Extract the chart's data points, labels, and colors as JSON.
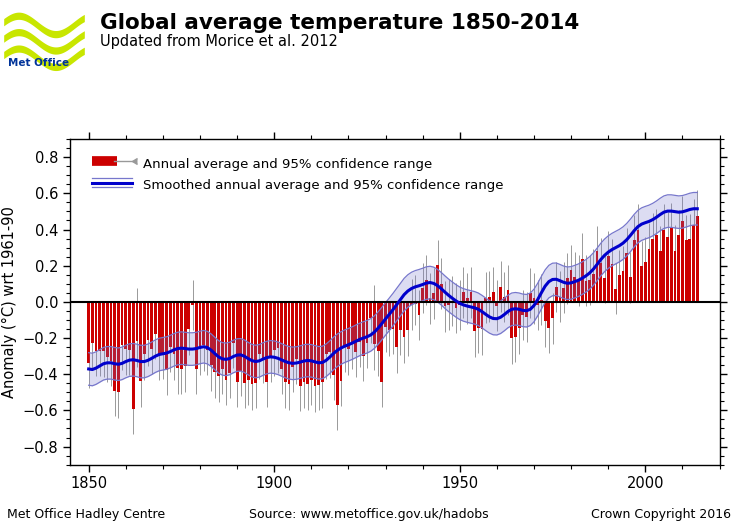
{
  "title": "Global average temperature 1850-2014",
  "subtitle": "Updated from Morice et al. 2012",
  "ylabel": "Anomaly (°C) wrt 1961-90",
  "xlabel_left": "Met Office Hadley Centre",
  "xlabel_center": "Source: www.metoffice.gov.uk/hadobs",
  "xlabel_right": "Crown Copyright 2016",
  "ylim": [
    -0.9,
    0.9
  ],
  "xlim": [
    1845,
    2020
  ],
  "yticks": [
    -0.8,
    -0.6,
    -0.4,
    -0.2,
    0.0,
    0.2,
    0.4,
    0.6,
    0.8
  ],
  "xticks": [
    1850,
    1900,
    1950,
    2000
  ],
  "bar_color": "#cc0000",
  "smooth_color": "#0000cc",
  "smooth_ci_color": "#7777cc",
  "error_bar_color": "#999999",
  "zero_line_color": "#000000",
  "background_color": "#ffffff",
  "logo_color": "#c8e600",
  "logo_text_color": "#003399",
  "years": [
    1850,
    1851,
    1852,
    1853,
    1854,
    1855,
    1856,
    1857,
    1858,
    1859,
    1860,
    1861,
    1862,
    1863,
    1864,
    1865,
    1866,
    1867,
    1868,
    1869,
    1870,
    1871,
    1872,
    1873,
    1874,
    1875,
    1876,
    1877,
    1878,
    1879,
    1880,
    1881,
    1882,
    1883,
    1884,
    1885,
    1886,
    1887,
    1888,
    1889,
    1890,
    1891,
    1892,
    1893,
    1894,
    1895,
    1896,
    1897,
    1898,
    1899,
    1900,
    1901,
    1902,
    1903,
    1904,
    1905,
    1906,
    1907,
    1908,
    1909,
    1910,
    1911,
    1912,
    1913,
    1914,
    1915,
    1916,
    1917,
    1918,
    1919,
    1920,
    1921,
    1922,
    1923,
    1924,
    1925,
    1926,
    1927,
    1928,
    1929,
    1930,
    1931,
    1932,
    1933,
    1934,
    1935,
    1936,
    1937,
    1938,
    1939,
    1940,
    1941,
    1942,
    1943,
    1944,
    1945,
    1946,
    1947,
    1948,
    1949,
    1950,
    1951,
    1952,
    1953,
    1954,
    1955,
    1956,
    1957,
    1958,
    1959,
    1960,
    1961,
    1962,
    1963,
    1964,
    1965,
    1966,
    1967,
    1968,
    1969,
    1970,
    1971,
    1972,
    1973,
    1974,
    1975,
    1976,
    1977,
    1978,
    1979,
    1980,
    1981,
    1982,
    1983,
    1984,
    1985,
    1986,
    1987,
    1988,
    1989,
    1990,
    1991,
    1992,
    1993,
    1994,
    1995,
    1996,
    1997,
    1998,
    1999,
    2000,
    2001,
    2002,
    2003,
    2004,
    2005,
    2006,
    2007,
    2008,
    2009,
    2010,
    2011,
    2012,
    2013,
    2014
  ],
  "anomaly": [
    -0.336,
    -0.229,
    -0.27,
    -0.272,
    -0.274,
    -0.305,
    -0.326,
    -0.491,
    -0.5,
    -0.238,
    -0.262,
    -0.267,
    -0.591,
    -0.219,
    -0.44,
    -0.29,
    -0.212,
    -0.259,
    -0.177,
    -0.29,
    -0.288,
    -0.376,
    -0.248,
    -0.291,
    -0.367,
    -0.371,
    -0.357,
    -0.152,
    -0.017,
    -0.37,
    -0.263,
    -0.241,
    -0.264,
    -0.351,
    -0.39,
    -0.411,
    -0.371,
    -0.43,
    -0.392,
    -0.228,
    -0.442,
    -0.381,
    -0.447,
    -0.432,
    -0.456,
    -0.448,
    -0.287,
    -0.31,
    -0.444,
    -0.301,
    -0.268,
    -0.254,
    -0.37,
    -0.445,
    -0.456,
    -0.359,
    -0.316,
    -0.465,
    -0.445,
    -0.456,
    -0.433,
    -0.467,
    -0.457,
    -0.445,
    -0.289,
    -0.279,
    -0.402,
    -0.568,
    -0.437,
    -0.248,
    -0.262,
    -0.229,
    -0.277,
    -0.22,
    -0.297,
    -0.225,
    -0.087,
    -0.234,
    -0.272,
    -0.444,
    -0.137,
    -0.158,
    -0.148,
    -0.251,
    -0.153,
    -0.197,
    -0.157,
    -0.016,
    -0.013,
    -0.072,
    0.077,
    0.12,
    0.02,
    0.048,
    0.204,
    0.101,
    -0.024,
    -0.015,
    0.004,
    -0.033,
    -0.017,
    0.053,
    0.019,
    0.053,
    -0.163,
    -0.143,
    -0.152,
    0.024,
    0.028,
    0.052,
    -0.021,
    0.084,
    0.027,
    0.066,
    -0.201,
    -0.193,
    -0.146,
    -0.073,
    -0.084,
    0.05,
    0.02,
    -0.017,
    0.013,
    -0.107,
    -0.145,
    -0.091,
    0.082,
    0.029,
    0.079,
    0.131,
    0.175,
    0.137,
    0.117,
    0.239,
    0.118,
    0.121,
    0.152,
    0.28,
    0.213,
    0.133,
    0.253,
    0.21,
    0.073,
    0.148,
    0.17,
    0.27,
    0.136,
    0.34,
    0.4,
    0.197,
    0.219,
    0.294,
    0.349,
    0.371,
    0.279,
    0.399,
    0.358,
    0.406,
    0.283,
    0.37,
    0.446,
    0.341,
    0.347,
    0.427,
    0.477
  ],
  "ci_lower": [
    -0.476,
    -0.369,
    -0.41,
    -0.412,
    -0.414,
    -0.445,
    -0.466,
    -0.631,
    -0.64,
    -0.378,
    -0.402,
    -0.407,
    -0.731,
    -0.359,
    -0.58,
    -0.43,
    -0.352,
    -0.399,
    -0.317,
    -0.43,
    -0.428,
    -0.516,
    -0.388,
    -0.431,
    -0.507,
    -0.511,
    -0.497,
    -0.292,
    -0.157,
    -0.51,
    -0.403,
    -0.381,
    -0.404,
    -0.491,
    -0.53,
    -0.551,
    -0.511,
    -0.57,
    -0.532,
    -0.368,
    -0.582,
    -0.521,
    -0.587,
    -0.572,
    -0.596,
    -0.588,
    -0.427,
    -0.45,
    -0.584,
    -0.441,
    -0.408,
    -0.394,
    -0.51,
    -0.585,
    -0.596,
    -0.499,
    -0.456,
    -0.605,
    -0.585,
    -0.596,
    -0.573,
    -0.607,
    -0.597,
    -0.585,
    -0.429,
    -0.419,
    -0.542,
    -0.708,
    -0.577,
    -0.388,
    -0.402,
    -0.369,
    -0.417,
    -0.36,
    -0.437,
    -0.365,
    -0.227,
    -0.374,
    -0.412,
    -0.584,
    -0.277,
    -0.298,
    -0.288,
    -0.391,
    -0.293,
    -0.337,
    -0.297,
    -0.156,
    -0.127,
    -0.212,
    -0.063,
    -0.02,
    -0.12,
    -0.092,
    0.064,
    -0.039,
    -0.164,
    -0.155,
    -0.136,
    -0.173,
    -0.157,
    -0.087,
    -0.121,
    -0.087,
    -0.303,
    -0.283,
    -0.292,
    -0.116,
    -0.112,
    -0.088,
    -0.161,
    -0.056,
    -0.113,
    -0.074,
    -0.341,
    -0.333,
    -0.286,
    -0.213,
    -0.224,
    -0.09,
    -0.121,
    -0.157,
    -0.127,
    -0.247,
    -0.285,
    -0.231,
    -0.058,
    -0.111,
    -0.061,
    -0.009,
    0.035,
    -0.003,
    -0.023,
    0.099,
    -0.022,
    -0.019,
    0.012,
    0.14,
    0.073,
    -0.007,
    0.113,
    0.07,
    -0.067,
    0.008,
    0.03,
    0.13,
    -0.004,
    0.2,
    0.26,
    0.057,
    0.079,
    0.154,
    0.209,
    0.231,
    0.139,
    0.259,
    0.218,
    0.266,
    0.143,
    0.23,
    0.306,
    0.201,
    0.207,
    0.287,
    0.337
  ],
  "ci_upper": [
    -0.196,
    -0.089,
    -0.13,
    -0.132,
    -0.134,
    -0.165,
    -0.186,
    -0.351,
    -0.36,
    -0.098,
    -0.122,
    -0.127,
    -0.451,
    0.079,
    -0.3,
    -0.15,
    -0.072,
    -0.119,
    -0.037,
    -0.15,
    -0.148,
    -0.236,
    -0.108,
    -0.151,
    -0.227,
    -0.231,
    -0.217,
    -0.012,
    0.123,
    -0.23,
    -0.123,
    -0.101,
    -0.124,
    -0.211,
    -0.25,
    -0.271,
    -0.231,
    -0.29,
    -0.252,
    -0.088,
    -0.302,
    -0.241,
    -0.307,
    -0.292,
    -0.316,
    -0.308,
    -0.147,
    -0.17,
    -0.304,
    -0.161,
    -0.128,
    -0.114,
    -0.23,
    -0.305,
    -0.316,
    -0.219,
    -0.176,
    -0.325,
    -0.305,
    -0.316,
    -0.293,
    -0.327,
    -0.317,
    -0.305,
    -0.149,
    -0.139,
    -0.262,
    -0.428,
    -0.297,
    -0.108,
    -0.122,
    -0.089,
    -0.137,
    -0.08,
    -0.157,
    -0.085,
    -0.053,
    0.094,
    -0.132,
    -0.304,
    0.003,
    -0.018,
    -0.008,
    -0.111,
    -0.013,
    -0.057,
    -0.017,
    0.124,
    0.147,
    0.068,
    0.217,
    0.26,
    0.16,
    0.188,
    0.344,
    0.241,
    0.116,
    0.125,
    0.144,
    0.107,
    0.123,
    0.193,
    0.159,
    0.193,
    -0.023,
    -0.003,
    -0.012,
    0.164,
    0.168,
    0.192,
    0.119,
    0.224,
    0.163,
    0.206,
    -0.061,
    -0.053,
    -0.006,
    0.067,
    0.056,
    0.19,
    0.161,
    0.123,
    0.153,
    -0.033,
    -0.005,
    0.049,
    0.222,
    0.169,
    0.219,
    0.271,
    0.315,
    0.277,
    0.257,
    0.379,
    0.258,
    0.261,
    0.292,
    0.42,
    0.353,
    0.273,
    0.393,
    0.35,
    0.213,
    0.288,
    0.31,
    0.41,
    0.276,
    0.48,
    0.54,
    0.337,
    0.359,
    0.434,
    0.489,
    0.511,
    0.419,
    0.539,
    0.498,
    0.546,
    0.423,
    0.51,
    0.586,
    0.481,
    0.487,
    0.567,
    0.617
  ],
  "smooth": [
    -0.371,
    -0.374,
    -0.366,
    -0.354,
    -0.342,
    -0.337,
    -0.337,
    -0.342,
    -0.345,
    -0.34,
    -0.33,
    -0.322,
    -0.32,
    -0.324,
    -0.33,
    -0.33,
    -0.323,
    -0.312,
    -0.3,
    -0.291,
    -0.287,
    -0.283,
    -0.275,
    -0.265,
    -0.258,
    -0.256,
    -0.258,
    -0.261,
    -0.261,
    -0.258,
    -0.252,
    -0.248,
    -0.253,
    -0.267,
    -0.286,
    -0.304,
    -0.315,
    -0.318,
    -0.313,
    -0.302,
    -0.294,
    -0.293,
    -0.301,
    -0.314,
    -0.325,
    -0.33,
    -0.326,
    -0.316,
    -0.308,
    -0.304,
    -0.306,
    -0.312,
    -0.321,
    -0.33,
    -0.337,
    -0.34,
    -0.338,
    -0.333,
    -0.327,
    -0.324,
    -0.326,
    -0.332,
    -0.337,
    -0.335,
    -0.323,
    -0.305,
    -0.285,
    -0.268,
    -0.255,
    -0.245,
    -0.237,
    -0.228,
    -0.218,
    -0.208,
    -0.2,
    -0.193,
    -0.183,
    -0.167,
    -0.145,
    -0.12,
    -0.094,
    -0.069,
    -0.043,
    -0.015,
    0.014,
    0.04,
    0.06,
    0.074,
    0.083,
    0.089,
    0.096,
    0.104,
    0.107,
    0.102,
    0.09,
    0.073,
    0.054,
    0.036,
    0.02,
    0.005,
    -0.008,
    -0.017,
    -0.023,
    -0.028,
    -0.033,
    -0.041,
    -0.054,
    -0.069,
    -0.083,
    -0.092,
    -0.093,
    -0.085,
    -0.07,
    -0.053,
    -0.041,
    -0.038,
    -0.041,
    -0.047,
    -0.049,
    -0.041,
    -0.02,
    0.013,
    0.051,
    0.087,
    0.112,
    0.124,
    0.125,
    0.117,
    0.108,
    0.103,
    0.105,
    0.112,
    0.12,
    0.131,
    0.144,
    0.16,
    0.181,
    0.207,
    0.234,
    0.257,
    0.275,
    0.289,
    0.3,
    0.311,
    0.325,
    0.344,
    0.368,
    0.394,
    0.416,
    0.43,
    0.438,
    0.445,
    0.455,
    0.468,
    0.483,
    0.496,
    0.502,
    0.502,
    0.499,
    0.496,
    0.498,
    0.504,
    0.511,
    0.515,
    0.515
  ],
  "smooth_lower": [
    -0.461,
    -0.464,
    -0.456,
    -0.444,
    -0.432,
    -0.427,
    -0.427,
    -0.432,
    -0.435,
    -0.43,
    -0.42,
    -0.412,
    -0.41,
    -0.414,
    -0.42,
    -0.42,
    -0.413,
    -0.402,
    -0.39,
    -0.381,
    -0.377,
    -0.373,
    -0.365,
    -0.355,
    -0.348,
    -0.346,
    -0.348,
    -0.351,
    -0.351,
    -0.348,
    -0.342,
    -0.338,
    -0.343,
    -0.357,
    -0.376,
    -0.394,
    -0.405,
    -0.408,
    -0.403,
    -0.392,
    -0.384,
    -0.383,
    -0.391,
    -0.404,
    -0.415,
    -0.42,
    -0.416,
    -0.406,
    -0.398,
    -0.394,
    -0.396,
    -0.402,
    -0.411,
    -0.42,
    -0.427,
    -0.43,
    -0.428,
    -0.423,
    -0.417,
    -0.414,
    -0.416,
    -0.422,
    -0.427,
    -0.425,
    -0.413,
    -0.395,
    -0.375,
    -0.358,
    -0.345,
    -0.335,
    -0.327,
    -0.318,
    -0.308,
    -0.298,
    -0.29,
    -0.283,
    -0.273,
    -0.257,
    -0.235,
    -0.21,
    -0.184,
    -0.159,
    -0.133,
    -0.105,
    -0.076,
    -0.05,
    -0.03,
    -0.016,
    -0.007,
    -0.001,
    0.006,
    0.014,
    0.017,
    0.012,
    0.0,
    -0.017,
    -0.036,
    -0.054,
    -0.07,
    -0.085,
    -0.098,
    -0.107,
    -0.113,
    -0.118,
    -0.123,
    -0.131,
    -0.144,
    -0.159,
    -0.173,
    -0.182,
    -0.183,
    -0.175,
    -0.16,
    -0.143,
    -0.131,
    -0.128,
    -0.131,
    -0.137,
    -0.139,
    -0.131,
    -0.11,
    -0.077,
    -0.039,
    -0.003,
    0.022,
    0.034,
    0.035,
    0.027,
    0.018,
    0.013,
    0.015,
    0.022,
    0.03,
    0.041,
    0.054,
    0.07,
    0.091,
    0.117,
    0.144,
    0.167,
    0.185,
    0.199,
    0.21,
    0.221,
    0.235,
    0.254,
    0.278,
    0.304,
    0.326,
    0.34,
    0.348,
    0.355,
    0.365,
    0.378,
    0.393,
    0.406,
    0.412,
    0.412,
    0.409,
    0.406,
    0.408,
    0.414,
    0.421,
    0.425,
    0.425
  ],
  "smooth_upper": [
    -0.281,
    -0.284,
    -0.276,
    -0.264,
    -0.252,
    -0.247,
    -0.247,
    -0.252,
    -0.255,
    -0.25,
    -0.24,
    -0.232,
    -0.23,
    -0.234,
    -0.24,
    -0.24,
    -0.233,
    -0.222,
    -0.21,
    -0.201,
    -0.197,
    -0.193,
    -0.185,
    -0.175,
    -0.168,
    -0.166,
    -0.168,
    -0.171,
    -0.171,
    -0.168,
    -0.162,
    -0.158,
    -0.163,
    -0.177,
    -0.196,
    -0.214,
    -0.225,
    -0.228,
    -0.223,
    -0.212,
    -0.204,
    -0.203,
    -0.211,
    -0.224,
    -0.235,
    -0.24,
    -0.236,
    -0.226,
    -0.218,
    -0.214,
    -0.216,
    -0.222,
    -0.231,
    -0.24,
    -0.247,
    -0.25,
    -0.248,
    -0.243,
    -0.237,
    -0.234,
    -0.236,
    -0.242,
    -0.247,
    -0.245,
    -0.233,
    -0.215,
    -0.195,
    -0.178,
    -0.165,
    -0.155,
    -0.147,
    -0.138,
    -0.128,
    -0.118,
    -0.11,
    -0.103,
    -0.093,
    -0.077,
    -0.055,
    -0.03,
    -0.004,
    0.021,
    0.047,
    0.075,
    0.104,
    0.13,
    0.15,
    0.164,
    0.173,
    0.179,
    0.186,
    0.194,
    0.197,
    0.192,
    0.18,
    0.163,
    0.144,
    0.126,
    0.11,
    0.095,
    0.082,
    0.073,
    0.067,
    0.062,
    0.057,
    0.049,
    0.036,
    0.021,
    0.007,
    -0.002,
    -0.003,
    0.005,
    0.02,
    0.037,
    0.049,
    0.052,
    0.049,
    0.043,
    0.041,
    0.049,
    0.07,
    0.103,
    0.141,
    0.177,
    0.202,
    0.214,
    0.215,
    0.207,
    0.198,
    0.193,
    0.195,
    0.202,
    0.21,
    0.221,
    0.234,
    0.25,
    0.271,
    0.297,
    0.324,
    0.347,
    0.365,
    0.379,
    0.39,
    0.401,
    0.415,
    0.434,
    0.458,
    0.484,
    0.506,
    0.52,
    0.528,
    0.535,
    0.545,
    0.558,
    0.573,
    0.586,
    0.592,
    0.592,
    0.589,
    0.586,
    0.588,
    0.594,
    0.601,
    0.605,
    0.605
  ]
}
